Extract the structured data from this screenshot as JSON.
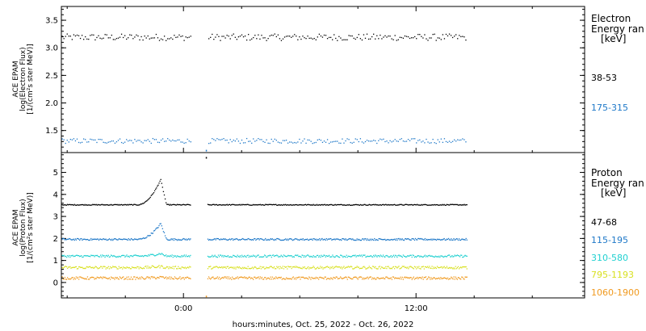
{
  "chart_data": [
    {
      "type": "scatter",
      "panel": "electron",
      "ylabel_lines": [
        "ACE EPAM",
        "log(Electron Flux)",
        "[1/(cm²s ster MeV)]"
      ],
      "legend_title_lines": [
        "Electron",
        "Energy ran",
        "[keV]"
      ],
      "ylim": [
        1.1,
        3.75
      ],
      "yticks": [
        "1.5",
        "2.0",
        "2.5",
        "3.0",
        "3.5"
      ],
      "ytick_values": [
        1.5,
        2.0,
        2.5,
        3.0,
        3.5
      ],
      "series": [
        {
          "name": "38-53",
          "color": "#000000",
          "mean": 3.2,
          "spread": 0.06,
          "gap_outlier": null
        },
        {
          "name": "175-315",
          "color": "#1e78c8",
          "mean": 1.32,
          "spread": 0.045,
          "gap_outlier": 1.15
        }
      ]
    },
    {
      "type": "scatter",
      "panel": "proton",
      "ylabel_lines": [
        "ACE EPAM",
        "log(Proton Flux)",
        "[1/(cm²s ster MeV)]"
      ],
      "legend_title_lines": [
        "Proton",
        "Energy ran",
        "[keV]"
      ],
      "ylim": [
        -0.7,
        5.9
      ],
      "yticks": [
        "0",
        "1",
        "2",
        "3",
        "4",
        "5"
      ],
      "ytick_values": [
        0,
        1,
        2,
        3,
        4,
        5
      ],
      "series": [
        {
          "name": "47-68",
          "color": "#000000",
          "mean": 3.55,
          "spread": 0.02,
          "bump": 1.15,
          "gap_outlier": 5.7
        },
        {
          "name": "115-195",
          "color": "#1e78c8",
          "mean": 1.98,
          "spread": 0.04,
          "bump": 0.72,
          "gap_outlier": null
        },
        {
          "name": "310-580",
          "color": "#20d0d0",
          "mean": 1.22,
          "spread": 0.05,
          "bump": 0.12,
          "gap_outlier": null
        },
        {
          "name": "795-1193",
          "color": "#d8e020",
          "mean": 0.7,
          "spread": 0.06,
          "bump": 0.05,
          "gap_outlier": null
        },
        {
          "name": "1060-1900",
          "color": "#f09a20",
          "mean": 0.22,
          "spread": 0.06,
          "bump": 0.04,
          "gap_outlier": -0.6
        }
      ]
    }
  ],
  "x_axis": {
    "title": "hours:minutes, Oct. 25, 2022 - Oct. 26, 2022",
    "tick_labels": [
      "0:00",
      "12:00"
    ],
    "span_hours": 27,
    "start_offset_hours": -6.3,
    "data_end_hours": 14.6,
    "gap_start_hours": 0.35,
    "gap_end_hours": 1.2,
    "bump_start_hours": -2.4,
    "bump_peak_hours": -1.2,
    "bump_end_hours": -0.9
  }
}
